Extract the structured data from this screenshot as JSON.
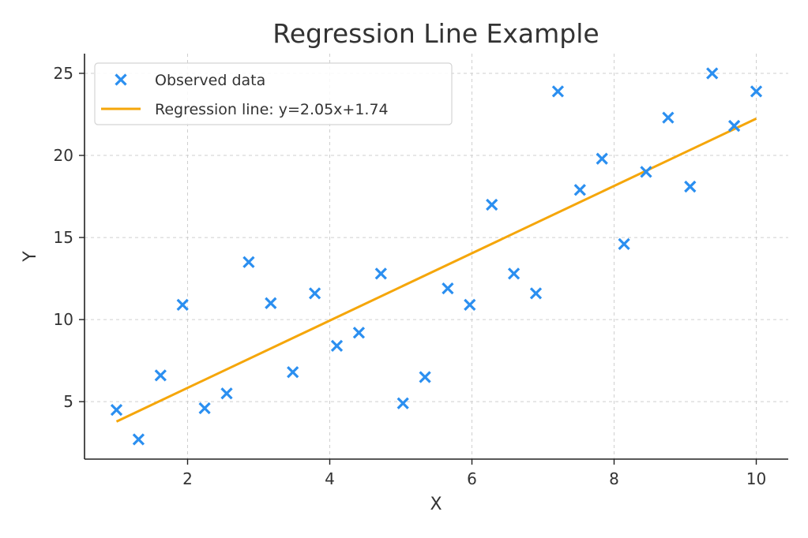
{
  "chart_data": {
    "type": "scatter",
    "title": "Regression Line Example",
    "xlabel": "X",
    "ylabel": "Y",
    "xlim": [
      0.55,
      10.45
    ],
    "ylim": [
      1.5,
      26.2
    ],
    "xticks": [
      2,
      4,
      6,
      8,
      10
    ],
    "yticks": [
      5,
      10,
      15,
      20,
      25
    ],
    "grid": true,
    "legend_position": "top-left",
    "series": [
      {
        "name": "Observed data",
        "kind": "scatter",
        "marker": "x",
        "color": "#2b8ff0",
        "x": [
          1.0,
          1.31,
          1.62,
          1.93,
          2.24,
          2.55,
          2.86,
          3.17,
          3.48,
          3.79,
          4.1,
          4.41,
          4.72,
          5.03,
          5.34,
          5.66,
          5.97,
          6.28,
          6.59,
          6.9,
          7.21,
          7.52,
          7.83,
          8.14,
          8.45,
          8.76,
          9.07,
          9.38,
          9.69,
          10.0
        ],
        "y": [
          4.5,
          2.7,
          6.6,
          10.9,
          4.6,
          5.5,
          13.5,
          11.0,
          6.8,
          11.6,
          8.4,
          9.2,
          12.8,
          4.9,
          6.5,
          11.9,
          10.9,
          17.0,
          12.8,
          11.6,
          23.9,
          17.9,
          19.8,
          14.6,
          19.0,
          22.3,
          18.1,
          25.0,
          21.8,
          23.9
        ]
      },
      {
        "name": "Regression line: y=2.05x+1.74",
        "kind": "line",
        "color": "#f5a60a",
        "slope": 2.05,
        "intercept": 1.74,
        "x": [
          1.0,
          10.0
        ],
        "y": [
          3.79,
          22.24
        ]
      }
    ]
  }
}
